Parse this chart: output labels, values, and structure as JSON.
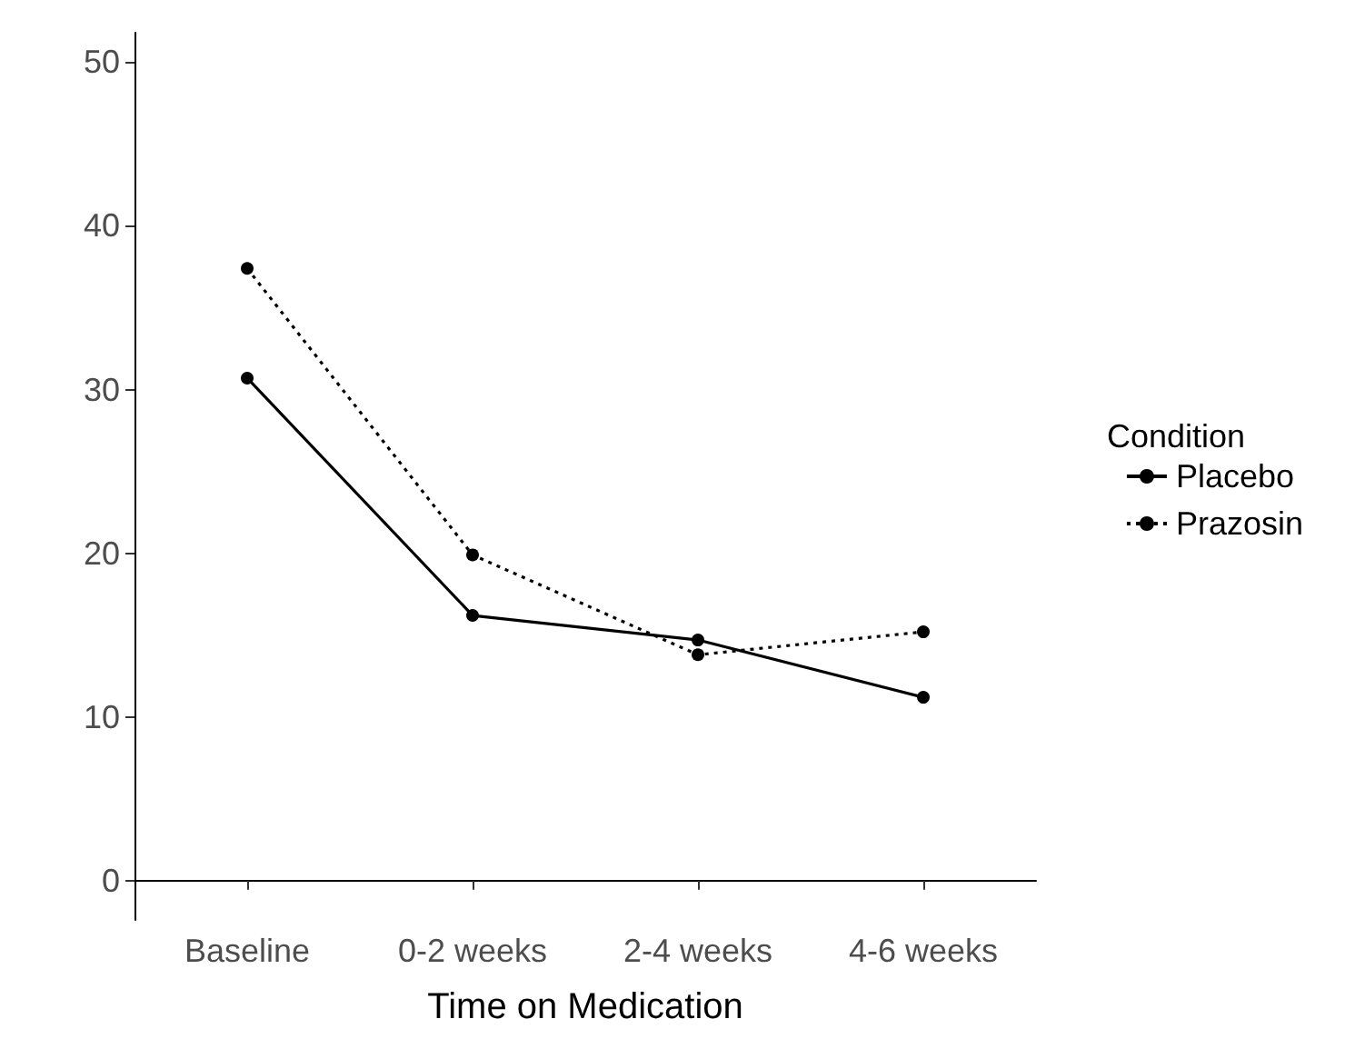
{
  "chart_data": {
    "type": "line",
    "xlabel": "Time on Medication",
    "legend_title": "Condition",
    "legend": "right",
    "grid": false,
    "marker": "circle",
    "categories": [
      "Baseline",
      "0-2 weeks",
      "2-4 weeks",
      "4-6 weeks"
    ],
    "ylim": [
      -2.4,
      51.8
    ],
    "yticks": [
      0,
      10,
      20,
      30,
      40,
      50
    ],
    "series": [
      {
        "name": "Placebo",
        "color": "#000000",
        "line_style": "solid",
        "values": [
          30.7,
          16.2,
          14.7,
          11.2
        ]
      },
      {
        "name": "Prazosin",
        "color": "#000000",
        "line_style": "dotted",
        "values": [
          37.4,
          19.9,
          13.8,
          15.2
        ]
      }
    ]
  }
}
